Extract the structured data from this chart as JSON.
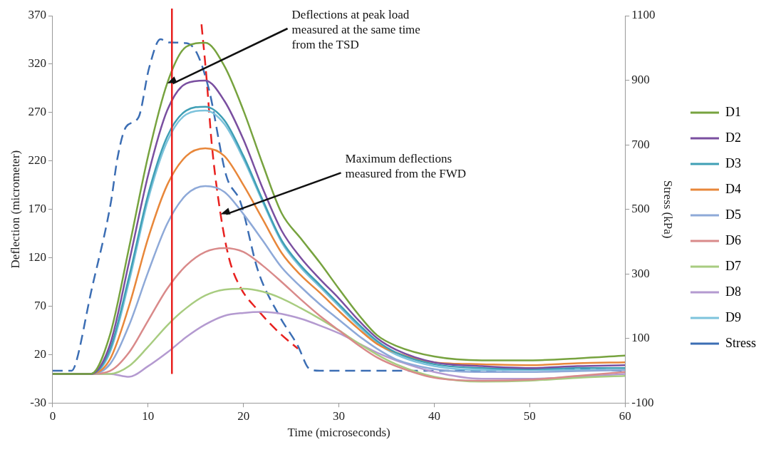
{
  "chart_data": {
    "type": "line",
    "xlabel": "Time (microseconds)",
    "ylabel": "Deflection (micrometer)",
    "y2label": "Stress (kPa)",
    "x": [
      0,
      4,
      6,
      8,
      10,
      12,
      14,
      16,
      18,
      20,
      22,
      24,
      26,
      28,
      30,
      32,
      34,
      36,
      40,
      45,
      50,
      55,
      60
    ],
    "series": [
      {
        "name": "D1",
        "color": "#77a33f",
        "values": [
          0,
          0,
          40,
          130,
          225,
          300,
          338,
          342,
          318,
          272,
          217,
          166,
          140,
          115,
          88,
          62,
          40,
          29,
          18,
          14,
          14,
          16,
          19
        ]
      },
      {
        "name": "D2",
        "color": "#7a4fa0",
        "values": [
          0,
          0,
          30,
          115,
          205,
          272,
          300,
          303,
          282,
          242,
          192,
          148,
          120,
          98,
          78,
          56,
          37,
          25,
          12,
          8,
          6,
          8,
          9
        ]
      },
      {
        "name": "D3",
        "color": "#3f9fb5",
        "values": [
          0,
          0,
          25,
          100,
          185,
          245,
          272,
          276,
          262,
          225,
          180,
          138,
          112,
          92,
          72,
          52,
          34,
          22,
          10,
          6,
          5,
          6,
          6
        ]
      },
      {
        "name": "D4",
        "color": "#e8873a",
        "values": [
          0,
          0,
          15,
          70,
          140,
          195,
          225,
          233,
          225,
          195,
          160,
          125,
          102,
          84,
          65,
          47,
          31,
          22,
          12,
          10,
          9,
          11,
          12
        ]
      },
      {
        "name": "D5",
        "color": "#8ea9d8",
        "values": [
          0,
          0,
          10,
          50,
          105,
          155,
          185,
          194,
          188,
          165,
          138,
          110,
          90,
          72,
          56,
          40,
          26,
          15,
          5,
          2,
          2,
          3,
          4
        ]
      },
      {
        "name": "D6",
        "color": "#d98a8a",
        "values": [
          0,
          0,
          3,
          22,
          55,
          88,
          112,
          126,
          130,
          126,
          112,
          95,
          77,
          60,
          45,
          30,
          17,
          8,
          -4,
          -7,
          -6,
          -2,
          2
        ]
      },
      {
        "name": "D7",
        "color": "#a8cc80",
        "values": [
          0,
          0,
          0,
          8,
          28,
          50,
          68,
          81,
          87,
          88,
          85,
          78,
          68,
          57,
          45,
          32,
          20,
          10,
          -3,
          -8,
          -7,
          -4,
          -2
        ]
      },
      {
        "name": "D8",
        "color": "#b49ad0",
        "values": [
          0,
          0,
          0,
          -3,
          8,
          22,
          38,
          51,
          60,
          63,
          64,
          62,
          57,
          50,
          42,
          32,
          22,
          14,
          2,
          -5,
          -5,
          -3,
          0
        ]
      },
      {
        "name": "D9",
        "color": "#7dc3dc",
        "values": [
          0,
          0,
          22,
          95,
          180,
          240,
          268,
          272,
          258,
          222,
          178,
          136,
          110,
          90,
          70,
          50,
          32,
          20,
          8,
          4,
          4,
          4,
          4
        ]
      },
      {
        "name": "Stress",
        "color": "#3c6eb4",
        "axis": "y2",
        "line_style": "dashed",
        "x": [
          0,
          2,
          2.4,
          4,
          6.1,
          6.8,
          7.7,
          9,
          10.1,
          11.3,
          12.2,
          14,
          15.1,
          16.4,
          18.2,
          19.7,
          21.5,
          23.7,
          25.7,
          26.9,
          28,
          35,
          45,
          52,
          60
        ],
        "values": [
          0,
          0,
          21,
          240,
          521,
          660,
          756,
          785,
          937,
          1027,
          1017,
          1015,
          985,
          869,
          604,
          521,
          312,
          173,
          77,
          6,
          0,
          0,
          0,
          6,
          0
        ]
      },
      {
        "color": "#e8211f",
        "line_style": "dashed",
        "x": [
          15.6,
          16.1,
          16.7,
          17.6,
          18.5,
          19.7,
          21.5,
          23.7,
          25.7
        ],
        "values": [
          361,
          309,
          235,
          165,
          119,
          89,
          66,
          43,
          26
        ]
      }
    ],
    "ref_lines": [
      {
        "axis": "x",
        "value": 12.5,
        "color": "#e8211f",
        "line_style": "solid"
      }
    ],
    "annotations": [
      {
        "text": "Deflections at peak load measured at the same time from the TSD",
        "x": 12,
        "y": 300
      },
      {
        "text": "Maximum deflections measured from the FWD",
        "x": 17.6,
        "y": 165
      }
    ],
    "xlim": [
      0,
      60
    ],
    "xticks": [
      0,
      10,
      20,
      30,
      40,
      50,
      60
    ],
    "ylim": [
      -30,
      370
    ],
    "yticks": [
      -30,
      20,
      70,
      120,
      170,
      220,
      270,
      320,
      370
    ],
    "y2lim": [
      -100,
      1100
    ],
    "y2ticks": [
      -100,
      100,
      300,
      500,
      700,
      900,
      1100
    ],
    "grid": false,
    "legend": "right",
    "marker": "none",
    "line_style": "solid"
  }
}
